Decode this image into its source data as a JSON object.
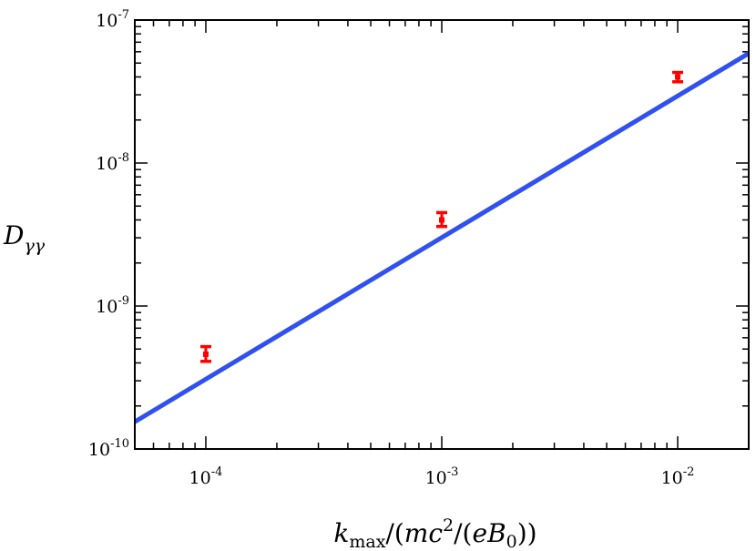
{
  "chart_data": {
    "type": "scatter",
    "title": "",
    "xlabel": {
      "text": "k_max/(mc^2/(eB_0))",
      "parts": {
        "k": "k",
        "k_sub": "max",
        "mid": "/(",
        "m": "m",
        "c": "c",
        "c_sup": "2",
        "mid2": "/(",
        "e": "e",
        "B": "B",
        "B_sub": "0",
        "close": "))"
      }
    },
    "ylabel": {
      "text": "D_γγ",
      "parts": {
        "D": "D",
        "D_sub": "γγ"
      }
    },
    "xscale": "log",
    "yscale": "log",
    "xlim": [
      5e-05,
      0.02
    ],
    "ylim": [
      1e-10,
      1e-07
    ],
    "xticks": [
      {
        "value": 0.0001,
        "base": "10",
        "exp": "-4"
      },
      {
        "value": 0.001,
        "base": "10",
        "exp": "-3"
      },
      {
        "value": 0.01,
        "base": "10",
        "exp": "-2"
      }
    ],
    "yticks": [
      {
        "value": 1e-10,
        "base": "10",
        "exp": "-10"
      },
      {
        "value": 1e-09,
        "base": "10",
        "exp": "-9"
      },
      {
        "value": 1e-08,
        "base": "10",
        "exp": "-8"
      },
      {
        "value": 1e-07,
        "base": "10",
        "exp": "-7"
      }
    ],
    "grid": false,
    "legend": "none",
    "series": [
      {
        "kind": "points_with_errorbars",
        "color": "#ff0000",
        "points": [
          {
            "x": 0.0001,
            "y": 4.6e-10,
            "ylo": 4.1e-10,
            "yhi": 5.2e-10
          },
          {
            "x": 0.001,
            "y": 4e-09,
            "ylo": 3.6e-09,
            "yhi": 4.5e-09
          },
          {
            "x": 0.01,
            "y": 4e-08,
            "ylo": 3.7e-08,
            "yhi": 4.3e-08
          }
        ]
      },
      {
        "kind": "line",
        "color": "#3050f0",
        "x": [
          5e-05,
          0.02
        ],
        "y": [
          1.55e-10,
          5.85e-08
        ]
      }
    ]
  }
}
